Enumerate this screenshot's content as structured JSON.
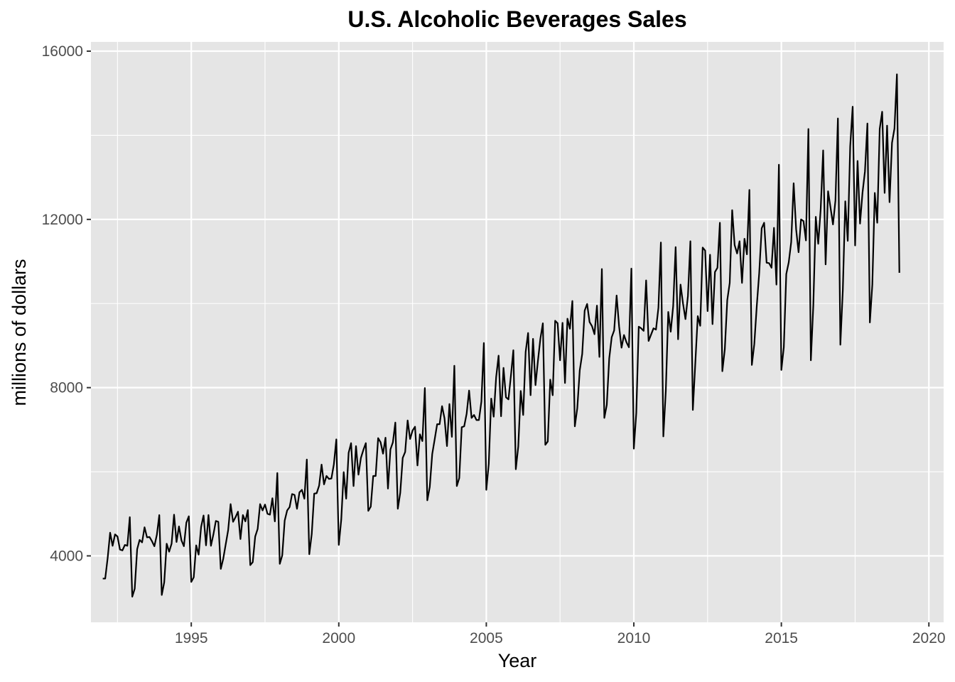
{
  "chart_data": {
    "type": "line",
    "title": "U.S. Alcoholic Beverages Sales",
    "xlabel": "Year",
    "ylabel": "millions of dollars",
    "xlim": [
      1991.6,
      2020.5
    ],
    "ylim": [
      2420,
      16220
    ],
    "x_ticks": [
      1995,
      2000,
      2005,
      2010,
      2015,
      2020
    ],
    "y_ticks": [
      4000,
      8000,
      12000,
      16000
    ],
    "grid": true,
    "panel_background": "#e5e5e5",
    "grid_color": "#ffffff",
    "line_color": "#000000",
    "series": [
      {
        "start_year": 1992,
        "frequency": "monthly",
        "values": [
          3460,
          3460,
          3950,
          4550,
          4240,
          4510,
          4460,
          4150,
          4130,
          4260,
          4240,
          4920,
          3030,
          3220,
          4160,
          4380,
          4320,
          4680,
          4440,
          4450,
          4350,
          4230,
          4500,
          4970,
          3070,
          3370,
          4290,
          4100,
          4290,
          4980,
          4330,
          4700,
          4370,
          4230,
          4790,
          4940,
          3380,
          3490,
          4250,
          4030,
          4690,
          4960,
          4250,
          4970,
          4240,
          4510,
          4830,
          4810,
          3690,
          3930,
          4270,
          4610,
          5230,
          4810,
          4920,
          5050,
          4400,
          4970,
          4820,
          5090,
          3780,
          3850,
          4460,
          4640,
          5230,
          5080,
          5220,
          5000,
          4980,
          5370,
          4820,
          5970,
          3810,
          4010,
          4840,
          5080,
          5160,
          5470,
          5450,
          5120,
          5510,
          5570,
          5360,
          6290,
          4040,
          4520,
          5480,
          5490,
          5670,
          6170,
          5700,
          5900,
          5830,
          5840,
          6180,
          6770,
          4260,
          4860,
          5990,
          5360,
          6450,
          6680,
          5660,
          6610,
          5930,
          6330,
          6520,
          6680,
          5070,
          5170,
          5900,
          5900,
          6800,
          6700,
          6430,
          6810,
          5600,
          6530,
          6700,
          7170,
          5120,
          5500,
          6330,
          6470,
          7220,
          6780,
          6980,
          7070,
          6150,
          6890,
          6730,
          7990,
          5320,
          5640,
          6420,
          6770,
          7130,
          7130,
          7560,
          7270,
          6610,
          7610,
          6830,
          8520,
          5660,
          5850,
          7060,
          7080,
          7380,
          7930,
          7280,
          7350,
          7230,
          7230,
          7670,
          9060,
          5570,
          6190,
          7740,
          7310,
          8250,
          8760,
          7320,
          8470,
          7770,
          7720,
          8280,
          8890,
          6060,
          6600,
          7920,
          7350,
          8850,
          9300,
          7820,
          9160,
          8060,
          8640,
          9170,
          9530,
          6640,
          6720,
          8190,
          7820,
          9590,
          9530,
          8650,
          9540,
          8110,
          9640,
          9400,
          10060,
          7080,
          7510,
          8410,
          8800,
          9830,
          9990,
          9560,
          9460,
          9270,
          9950,
          8730,
          10820,
          7280,
          7590,
          8700,
          9200,
          9360,
          10190,
          9460,
          8950,
          9250,
          9080,
          8960,
          10830,
          6550,
          7400,
          9450,
          9410,
          9350,
          10550,
          9110,
          9260,
          9410,
          9380,
          9900,
          11450,
          6840,
          7920,
          9800,
          9330,
          9940,
          11340,
          9150,
          10450,
          10000,
          9630,
          10180,
          11480,
          7470,
          8580,
          9700,
          9470,
          11330,
          11260,
          9820,
          11160,
          9510,
          10750,
          10850,
          11920,
          8390,
          8910,
          10080,
          10490,
          12220,
          11390,
          11190,
          11480,
          10490,
          11540,
          11170,
          12700,
          8540,
          9040,
          9940,
          10730,
          11790,
          11920,
          10970,
          10960,
          10850,
          11800,
          10450,
          13300,
          8420,
          8960,
          10700,
          10980,
          11460,
          12860,
          11770,
          11220,
          12000,
          11960,
          11500,
          14150,
          8650,
          9960,
          12060,
          11420,
          12250,
          13640,
          10930,
          12670,
          12280,
          11880,
          12450,
          14400,
          9020,
          10320,
          12430,
          11490,
          13740,
          14680,
          11380,
          13390,
          11900,
          12630,
          13140,
          14280,
          9550,
          10450,
          12630,
          11920,
          14150,
          14560,
          12630,
          14230,
          12410,
          13820,
          14160,
          15450,
          10730
        ]
      }
    ]
  }
}
